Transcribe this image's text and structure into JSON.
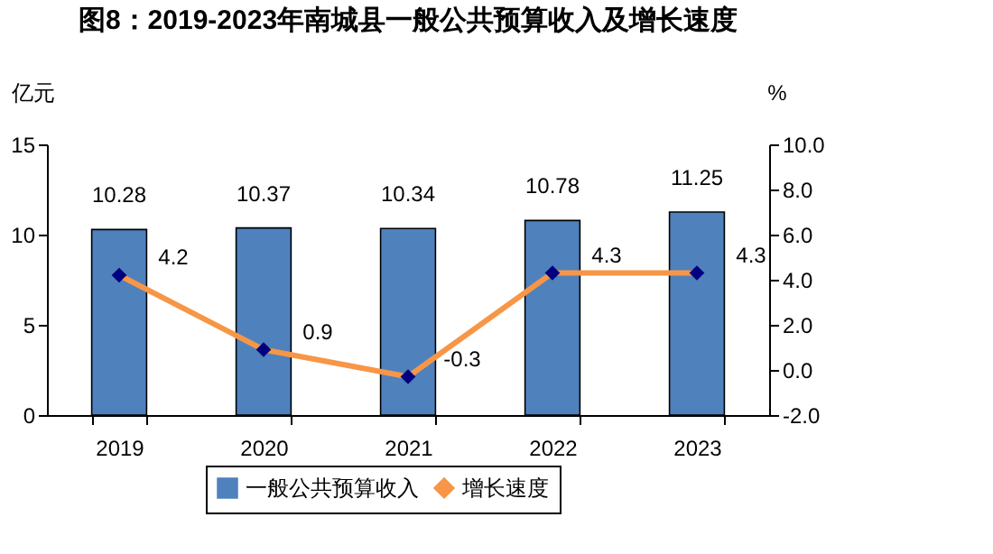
{
  "chart_data": {
    "type": "bar",
    "title": "图8：2019-2023年南城县一般公共预算收入及增长速度",
    "ylabel": "亿元",
    "y2label": "%",
    "categories": [
      "2019",
      "2020",
      "2021",
      "2022",
      "2023"
    ],
    "series": [
      {
        "name": "一般公共预算收入",
        "color": "#4f81bd",
        "values": [
          10.28,
          10.37,
          10.34,
          10.78,
          11.25
        ]
      },
      {
        "name": "增长速度",
        "type": "line",
        "axis": "y2",
        "color": "#f79646",
        "marker": "diamond",
        "values": [
          4.2,
          0.9,
          -0.3,
          4.3,
          4.3
        ]
      }
    ],
    "ylim": [
      0,
      15
    ],
    "yticks": [
      0,
      5,
      10,
      15
    ],
    "y2lim": [
      -2,
      10
    ],
    "y2ticks": [
      {
        "value": -2,
        "label": "-2.0"
      },
      {
        "value": 0,
        "label": "0.0"
      },
      {
        "value": 2,
        "label": "2.0"
      },
      {
        "value": 4,
        "label": "4.0"
      },
      {
        "value": 6,
        "label": "6.0"
      },
      {
        "value": 8,
        "label": "8.0"
      },
      {
        "value": 10,
        "label": "10.0"
      }
    ],
    "data_labels": true,
    "grid": false,
    "legend": "bottom"
  }
}
